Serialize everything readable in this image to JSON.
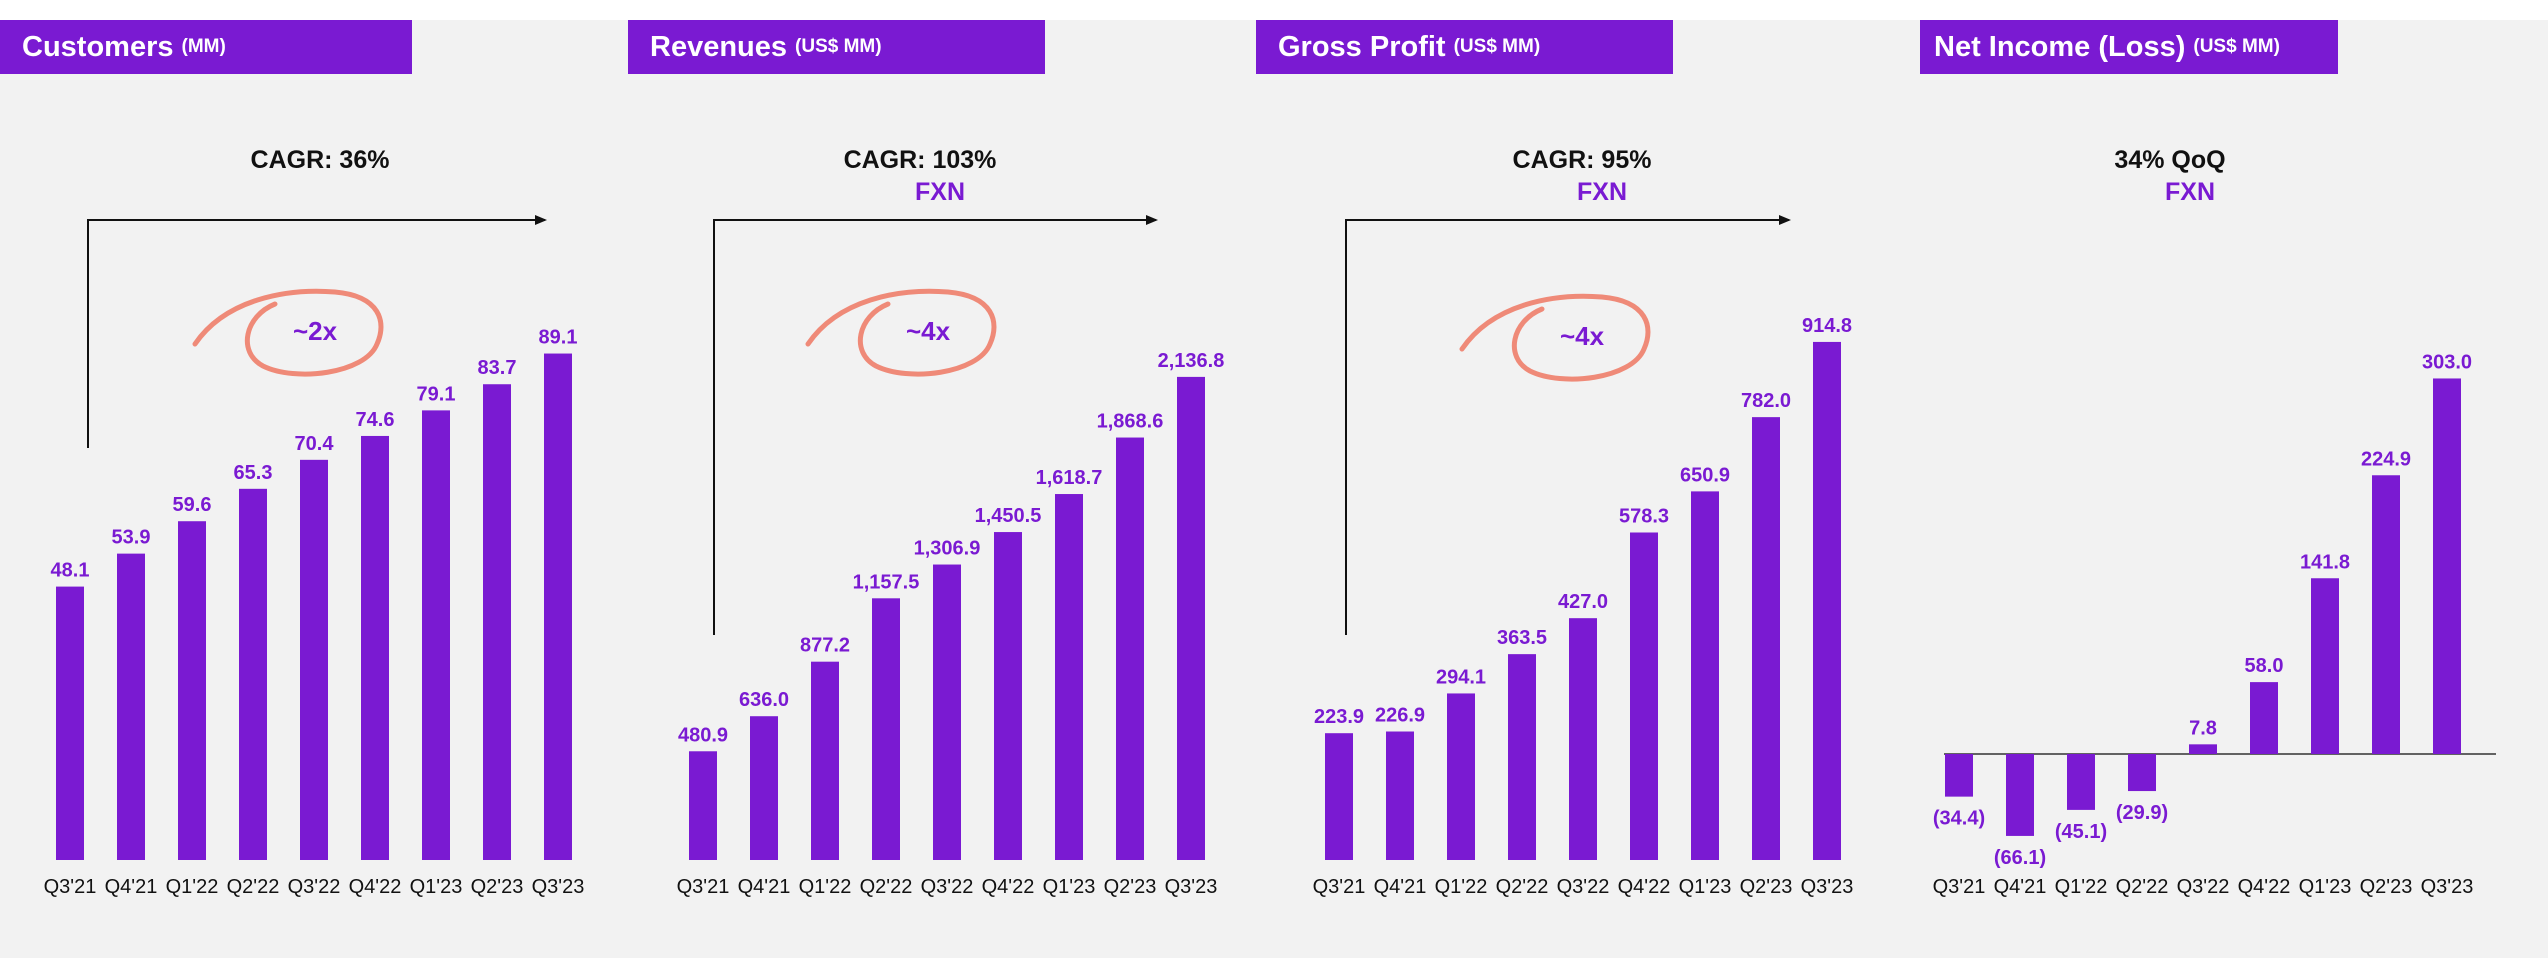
{
  "colors": {
    "bar": "#7a1ad2",
    "header_bg": "#7a1ad2",
    "circle": "#ef8a78",
    "arrow": "#111111",
    "background": "#f2f2f2"
  },
  "chart_data": [
    {
      "type": "bar",
      "title": "Customers",
      "unit": "(MM)",
      "annotation": "CAGR: 36%",
      "annotation_sub": "",
      "multiplier": "~2x",
      "categories": [
        "Q3'21",
        "Q4'21",
        "Q1'22",
        "Q2'22",
        "Q3'22",
        "Q4'22",
        "Q1'23",
        "Q2'23",
        "Q3'23"
      ],
      "values": [
        48.1,
        53.9,
        59.6,
        65.3,
        70.4,
        74.6,
        79.1,
        83.7,
        89.1
      ],
      "value_labels": [
        "48.1",
        "53.9",
        "59.6",
        "65.3",
        "70.4",
        "74.6",
        "79.1",
        "83.7",
        "89.1"
      ],
      "ylim": [
        0,
        95
      ],
      "grid": false
    },
    {
      "type": "bar",
      "title": "Revenues",
      "unit": "(US$ MM)",
      "annotation": "CAGR: 103%",
      "annotation_sub": "FXN",
      "multiplier": "~4x",
      "categories": [
        "Q3'21",
        "Q4'21",
        "Q1'22",
        "Q2'22",
        "Q3'22",
        "Q4'22",
        "Q1'23",
        "Q2'23",
        "Q3'23"
      ],
      "values": [
        480.9,
        636.0,
        877.2,
        1157.5,
        1306.9,
        1450.5,
        1618.7,
        1868.6,
        2136.8
      ],
      "value_labels": [
        "480.9",
        "636.0",
        "877.2",
        "1,157.5",
        "1,306.9",
        "1,450.5",
        "1,618.7",
        "1,868.6",
        "2,136.8"
      ],
      "ylim": [
        0,
        2300
      ],
      "grid": false
    },
    {
      "type": "bar",
      "title": "Gross Profit",
      "unit": "(US$ MM)",
      "annotation": "CAGR: 95%",
      "annotation_sub": "FXN",
      "multiplier": "~4x",
      "categories": [
        "Q3'21",
        "Q4'21",
        "Q1'22",
        "Q2'22",
        "Q3'22",
        "Q4'22",
        "Q1'23",
        "Q2'23",
        "Q3'23"
      ],
      "values": [
        223.9,
        226.9,
        294.1,
        363.5,
        427.0,
        578.3,
        650.9,
        782.0,
        914.8
      ],
      "value_labels": [
        "223.9",
        "226.9",
        "294.1",
        "363.5",
        "427.0",
        "578.3",
        "650.9",
        "782.0",
        "914.8"
      ],
      "ylim": [
        0,
        980
      ],
      "grid": false
    },
    {
      "type": "bar",
      "title": "Net Income (Loss)",
      "unit": "(US$ MM)",
      "annotation": "34% QoQ",
      "annotation_sub": "FXN",
      "multiplier": "",
      "categories": [
        "Q3'21",
        "Q4'21",
        "Q1'22",
        "Q2'22",
        "Q3'22",
        "Q4'22",
        "Q1'23",
        "Q2'23",
        "Q3'23"
      ],
      "values": [
        -34.4,
        -66.1,
        -45.1,
        -29.9,
        7.8,
        58.0,
        141.8,
        224.9,
        303.0
      ],
      "value_labels": [
        "(34.4)",
        "(66.1)",
        "(45.1)",
        "(29.9)",
        "7.8",
        "58.0",
        "141.8",
        "224.9",
        "303.0"
      ],
      "ylim": [
        -70,
        330
      ],
      "grid": false
    }
  ]
}
